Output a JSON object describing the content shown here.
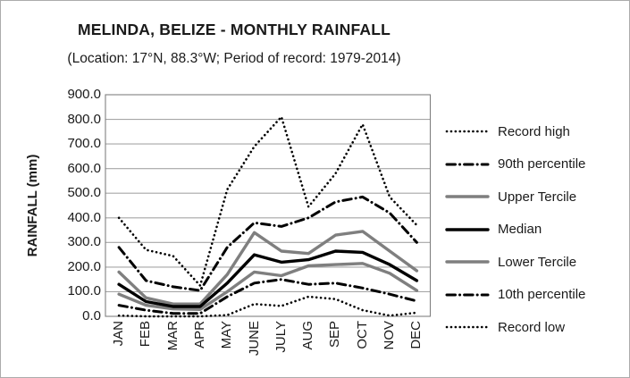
{
  "chart_data": {
    "type": "line",
    "title": "MELINDA, BELIZE - MONTHLY RAINFALL",
    "subtitle": "(Location: 17°N, 88.3°W; Period of record: 1979-2014)",
    "ylabel": "RAINFALL (mm)",
    "ylim": [
      0,
      900
    ],
    "ytick_step": 100,
    "ytick_labels": [
      "0.0",
      "100.0",
      "200.0",
      "300.0",
      "400.0",
      "500.0",
      "600.0",
      "700.0",
      "800.0",
      "900.0"
    ],
    "categories": [
      "JAN",
      "FEB",
      "MAR",
      "APR",
      "MAY",
      "JUNE",
      "JULY",
      "AUG",
      "SEP",
      "OCT",
      "NOV",
      "DEC"
    ],
    "grid": true,
    "legend_position": "right",
    "colors": {
      "line_black": "#000000",
      "line_gray": "#7f7f7f",
      "gridline": "#a6a6a6",
      "frame": "#808080",
      "text": "#1a1a1a"
    },
    "series": [
      {
        "name": "Record high",
        "style": "dotted",
        "color": "#000000",
        "values": [
          400,
          270,
          245,
          125,
          515,
          690,
          810,
          445,
          580,
          780,
          485,
          370
        ]
      },
      {
        "name": "90th percentile",
        "style": "dashdot",
        "color": "#000000",
        "values": [
          280,
          145,
          120,
          105,
          280,
          380,
          365,
          400,
          465,
          485,
          420,
          300
        ]
      },
      {
        "name": "Upper Tercile",
        "style": "solid",
        "color": "#7f7f7f",
        "values": [
          180,
          75,
          50,
          50,
          170,
          340,
          265,
          255,
          330,
          345,
          265,
          185
        ]
      },
      {
        "name": "Median",
        "style": "solid",
        "color": "#000000",
        "values": [
          130,
          60,
          40,
          40,
          135,
          250,
          220,
          230,
          265,
          260,
          210,
          145
        ]
      },
      {
        "name": "Lower Tercile",
        "style": "solid",
        "color": "#7f7f7f",
        "values": [
          90,
          45,
          30,
          28,
          100,
          180,
          165,
          205,
          210,
          215,
          175,
          105
        ]
      },
      {
        "name": "10th percentile",
        "style": "dashdot",
        "color": "#000000",
        "values": [
          45,
          25,
          12,
          12,
          80,
          135,
          150,
          130,
          135,
          115,
          90,
          62
        ]
      },
      {
        "name": "Record low",
        "style": "dotted",
        "color": "#000000",
        "values": [
          3,
          0,
          0,
          0,
          5,
          50,
          42,
          80,
          70,
          25,
          3,
          15
        ]
      }
    ]
  }
}
